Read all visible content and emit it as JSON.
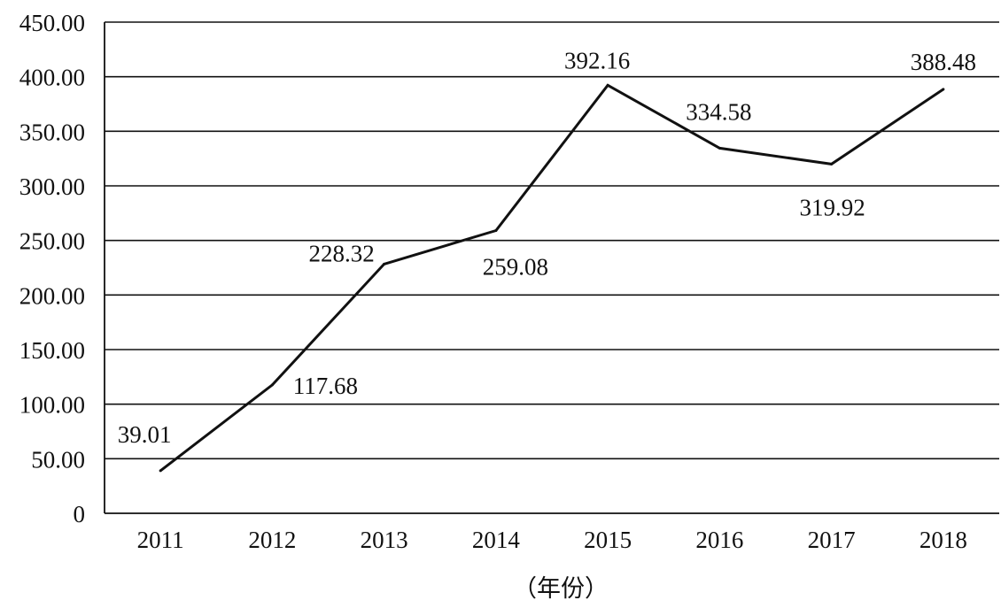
{
  "chart_data": {
    "type": "line",
    "x": [
      "2011",
      "2012",
      "2013",
      "2014",
      "2015",
      "2016",
      "2017",
      "2018"
    ],
    "series": [
      {
        "values": [
          39.01,
          117.68,
          228.32,
          259.08,
          392.16,
          334.58,
          319.92,
          388.48
        ]
      }
    ],
    "data_labels": [
      "39.01",
      "117.68",
      "228.32",
      "259.08",
      "392.16",
      "334.58",
      "319.92",
      "388.48"
    ],
    "y_ticks": [
      "0",
      "50.00",
      "100.00",
      "150.00",
      "200.00",
      "250.00",
      "300.00",
      "350.00",
      "400.00",
      "450.00"
    ],
    "ylim": [
      0,
      450
    ],
    "xlabel": "（年份）",
    "ylabel": "",
    "title": "",
    "grid": "horizontal",
    "line_color": "#111111",
    "grid_color": "#111111"
  }
}
